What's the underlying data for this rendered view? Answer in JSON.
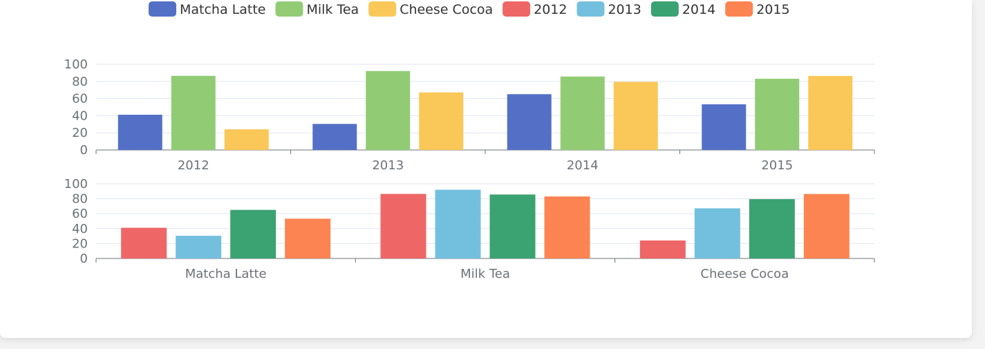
{
  "legend": [
    "Matcha Latte",
    "Milk Tea",
    "Cheese Cocoa",
    "2012",
    "2013",
    "2014",
    "2015"
  ],
  "colors": {
    "Matcha Latte": "#5470c6",
    "Milk Tea": "#91cc75",
    "Cheese Cocoa": "#fac858",
    "2012": "#ee6666",
    "2013": "#73c0de",
    "2014": "#3ba272",
    "2015": "#fc8452"
  },
  "chart_data": [
    {
      "type": "bar",
      "categories": [
        "2012",
        "2013",
        "2014",
        "2015"
      ],
      "series": [
        {
          "name": "Matcha Latte",
          "values": [
            41.1,
            30.4,
            65.1,
            53.3
          ]
        },
        {
          "name": "Milk Tea",
          "values": [
            86.5,
            92.1,
            85.7,
            83.1
          ]
        },
        {
          "name": "Cheese Cocoa",
          "values": [
            24.1,
            67.2,
            79.5,
            86.4
          ]
        }
      ],
      "ylim": [
        0,
        100
      ],
      "yticks": [
        0,
        20,
        40,
        60,
        80,
        100
      ],
      "grid": true,
      "legend_position": "top"
    },
    {
      "type": "bar",
      "categories": [
        "Matcha Latte",
        "Milk Tea",
        "Cheese Cocoa"
      ],
      "series": [
        {
          "name": "2012",
          "values": [
            41.1,
            86.5,
            24.1
          ]
        },
        {
          "name": "2013",
          "values": [
            30.4,
            92.1,
            67.2
          ]
        },
        {
          "name": "2014",
          "values": [
            65.1,
            85.7,
            79.5
          ]
        },
        {
          "name": "2015",
          "values": [
            53.3,
            83.1,
            86.4
          ]
        }
      ],
      "ylim": [
        0,
        100
      ],
      "yticks": [
        0,
        20,
        40,
        60,
        80,
        100
      ],
      "grid": true,
      "legend_position": "top"
    }
  ]
}
